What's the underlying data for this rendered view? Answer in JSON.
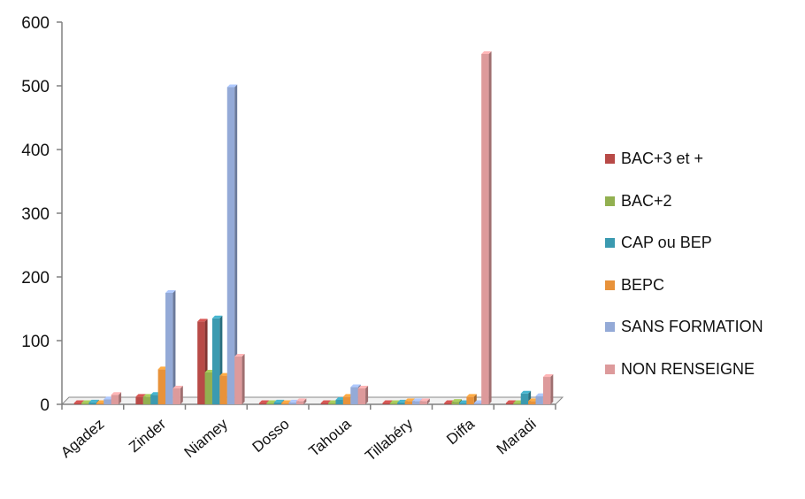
{
  "chart_data": {
    "type": "bar",
    "variant": "3d-clustered-column",
    "categories": [
      "Agadez",
      "Zinder",
      "Niamey",
      "Dosso",
      "Tahoua",
      "Tillabéry",
      "Diffa",
      "Maradi"
    ],
    "series": [
      {
        "name": "BAC+3 et +",
        "color": "#b84a47",
        "values": [
          2,
          12,
          130,
          2,
          2,
          2,
          2,
          2
        ]
      },
      {
        "name": "BAC+2",
        "color": "#92b050",
        "values": [
          2,
          12,
          50,
          2,
          2,
          2,
          4,
          2
        ]
      },
      {
        "name": "CAP ou BEP",
        "color": "#3b9ab0",
        "values": [
          3,
          15,
          135,
          3,
          7,
          3,
          2,
          17
        ]
      },
      {
        "name": "BEPC",
        "color": "#e8923a",
        "values": [
          2,
          55,
          45,
          2,
          12,
          5,
          12,
          5
        ]
      },
      {
        "name": "SANS FORMATION",
        "color": "#94aad7",
        "values": [
          8,
          175,
          498,
          3,
          27,
          5,
          2,
          13
        ]
      },
      {
        "name": "NON RENSEIGNE",
        "color": "#dd9a9b",
        "values": [
          15,
          25,
          75,
          5,
          25,
          5,
          550,
          43
        ]
      }
    ],
    "title": "",
    "xlabel": "",
    "ylabel": "",
    "ylim": [
      0,
      600
    ],
    "yticks": [
      "0",
      "100",
      "200",
      "300",
      "400",
      "500",
      "600"
    ],
    "grid": false,
    "legend": "right"
  }
}
